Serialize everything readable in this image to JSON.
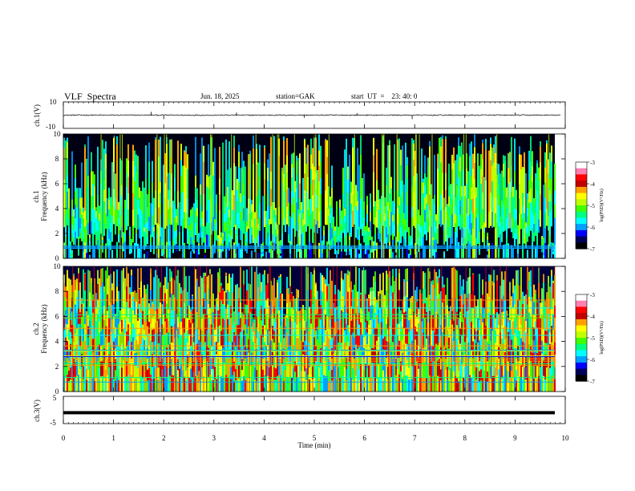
{
  "header": {
    "title": "VLF  Spectra",
    "date": "Jun. 18, 2025",
    "station": "station=GAK",
    "start": "start  UT  =    23: 40: 0"
  },
  "panels": {
    "ch1_waveform": {
      "ylabel": "ch.1(V)",
      "ticks": [
        "10",
        "-10"
      ]
    },
    "ch1_spectrogram": {
      "ylabel": [
        "ch.1",
        "Frequency (kHz)"
      ]
    },
    "ch2_spectrogram": {
      "ylabel": [
        "ch.2",
        "Frequency (kHz)"
      ]
    },
    "ch3_waveform": {
      "ylabel": "ch.3(V)",
      "ticks": [
        "5",
        "-5"
      ]
    }
  },
  "colorbar": {
    "label": "log(PSD)(V²/Hz)",
    "ticks": [
      "-3",
      "-4",
      "-5",
      "-6",
      "-7"
    ]
  },
  "colors": {
    "palette": [
      "#000000",
      "#00005a",
      "#0000ff",
      "#00a0ff",
      "#00ffff",
      "#00ff80",
      "#40ff00",
      "#c0ff00",
      "#ffff00",
      "#ffa000",
      "#ff0000",
      "#c00000",
      "#ff80b0",
      "#ffffff"
    ]
  },
  "chart_data": [
    {
      "type": "line",
      "title": "VLF  Spectra",
      "ylabel": "ch.1(V)",
      "xlim": [
        0,
        10
      ],
      "ylim": [
        -10,
        10
      ],
      "baseline": 0,
      "spikes": [
        [
          1.75,
          2.5
        ],
        [
          2.0,
          -3
        ],
        [
          3.45,
          2
        ],
        [
          4.8,
          -2
        ],
        [
          5.85,
          1.5
        ],
        [
          6.95,
          -3
        ],
        [
          8.0,
          -2
        ],
        [
          9.0,
          2
        ]
      ]
    },
    {
      "type": "heatmap",
      "ylabel": "Frequency (kHz)",
      "xlabel": "Time (min)",
      "xlim": [
        0,
        9.8
      ],
      "ylim": [
        0,
        10
      ],
      "value_range": [
        -7,
        -3
      ],
      "y_ticks": [
        0,
        2,
        4,
        6,
        8,
        10
      ]
    },
    {
      "type": "heatmap",
      "ylabel": "Frequency (kHz)",
      "xlabel": "Time (min)",
      "xlim": [
        0,
        9.8
      ],
      "ylim": [
        0,
        10
      ],
      "value_range": [
        -7,
        -3
      ],
      "y_ticks": [
        0,
        2,
        4,
        6,
        8,
        10
      ]
    },
    {
      "type": "line",
      "ylabel": "ch.3(V)",
      "xlabel": "Time (min)",
      "xlim": [
        0,
        10
      ],
      "ylim": [
        -5,
        5
      ],
      "baseline": -1,
      "x_ticks": [
        0,
        1,
        2,
        3,
        4,
        5,
        6,
        7,
        8,
        9,
        10
      ]
    }
  ],
  "x_axis": {
    "label": "Time  (min)",
    "ticks": [
      "0",
      "1",
      "2",
      "3",
      "4",
      "5",
      "6",
      "7",
      "8",
      "9",
      "10"
    ]
  }
}
